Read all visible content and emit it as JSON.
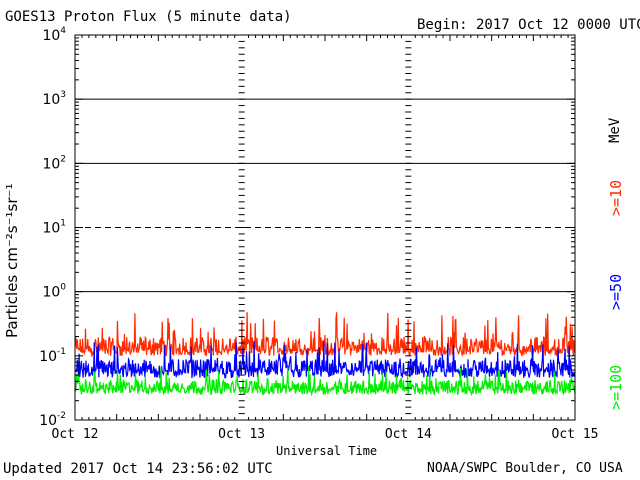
{
  "header": {
    "title": "GOES13 Proton Flux (5 minute data)",
    "begin": "Begin: 2017 Oct 12 0000 UTC"
  },
  "footer": {
    "updated": "Updated 2017 Oct 14 23:56:02 UTC",
    "credit": "NOAA/SWPC Boulder, CO USA"
  },
  "chart_data": {
    "type": "line",
    "title": "GOES13 Proton Flux (5 minute data)",
    "xlabel": "Universal Time",
    "ylabel": "Particles cm⁻²s⁻¹sr⁻¹",
    "yscale": "log",
    "ylim": [
      0.01,
      10000
    ],
    "y_ticks": [
      {
        "label_base": "10",
        "label_exp": "-2",
        "value": 0.01
      },
      {
        "label_base": "10",
        "label_exp": "-1",
        "value": 0.1
      },
      {
        "label_base": "10",
        "label_exp": "0",
        "value": 1
      },
      {
        "label_base": "10",
        "label_exp": "1",
        "value": 10
      },
      {
        "label_base": "10",
        "label_exp": "2",
        "value": 100
      },
      {
        "label_base": "10",
        "label_exp": "3",
        "value": 1000
      },
      {
        "label_base": "10",
        "label_exp": "4",
        "value": 10000
      }
    ],
    "xlim": [
      "2017-10-12",
      "2017-10-15"
    ],
    "x_ticks": [
      "Oct 12",
      "Oct 13",
      "Oct 14",
      "Oct 15"
    ],
    "unit_label": "MeV",
    "thresholds": [
      {
        "value": 10,
        "style": "dashed"
      },
      {
        "value": 100,
        "style": "solid"
      },
      {
        "value": 1000,
        "style": "solid"
      }
    ],
    "series": [
      {
        "name": ">=10",
        "color": "#ff2a00",
        "typical_value": 0.15,
        "range": [
          0.1,
          0.5
        ]
      },
      {
        "name": ">=50",
        "color": "#0000ff",
        "typical_value": 0.07,
        "range": [
          0.045,
          0.17
        ]
      },
      {
        "name": ">=100",
        "color": "#00ee00",
        "typical_value": 0.035,
        "range": [
          0.025,
          0.07
        ]
      }
    ]
  }
}
